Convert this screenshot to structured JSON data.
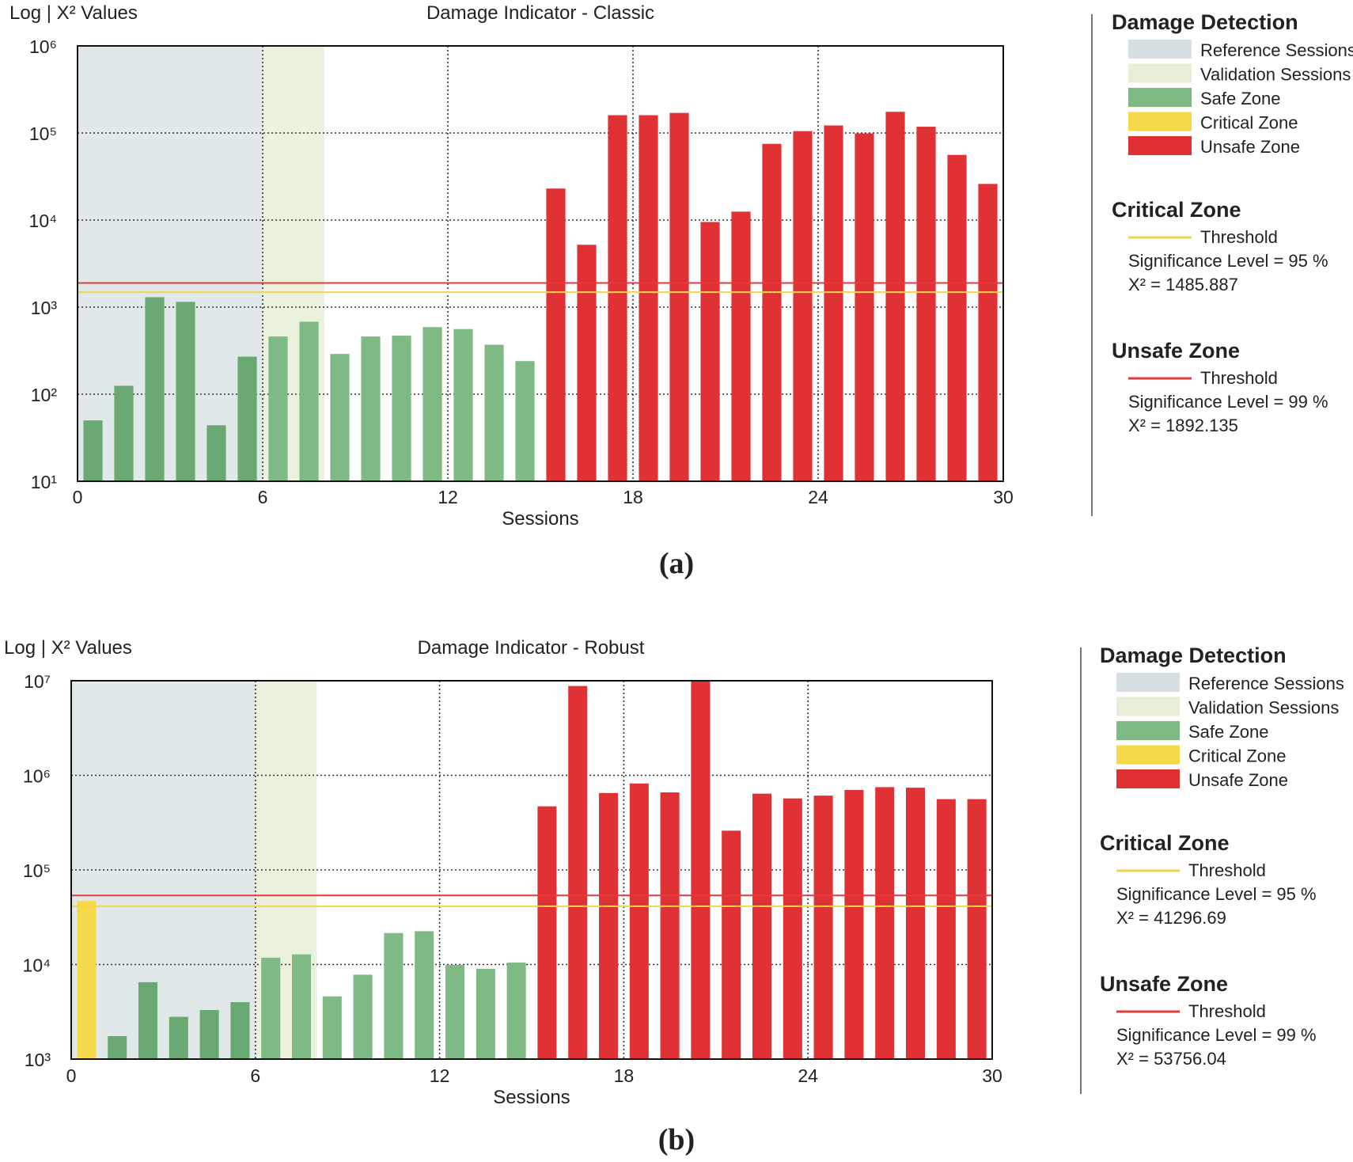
{
  "colors": {
    "reference": "#d6e0e2",
    "validation": "#e6efd6",
    "safe": "#7fba84",
    "safe_ref": "#6aaa72",
    "critical": "#f5d94a",
    "unsafe": "#e03234",
    "critical_line": "#f2d64a",
    "unsafe_line": "#e53a3c"
  },
  "chart_data": [
    {
      "id": "a",
      "type": "bar",
      "scale": "log",
      "title": "Damage Indicator - Classic",
      "ylabel": "Log | X² Values",
      "xlabel": "Sessions",
      "caption": "(a)",
      "xlim": [
        0,
        30
      ],
      "xticks": [
        0,
        6,
        12,
        18,
        24,
        30
      ],
      "ylim_exp": [
        1,
        6
      ],
      "reference_sessions": [
        0,
        6
      ],
      "validation_sessions": [
        6,
        8
      ],
      "bars": [
        {
          "x": 0.5,
          "value": 50,
          "zone": "safe"
        },
        {
          "x": 1.5,
          "value": 125,
          "zone": "safe"
        },
        {
          "x": 2.5,
          "value": 1300,
          "zone": "safe"
        },
        {
          "x": 3.5,
          "value": 1150,
          "zone": "safe"
        },
        {
          "x": 4.5,
          "value": 44,
          "zone": "safe"
        },
        {
          "x": 5.5,
          "value": 270,
          "zone": "safe"
        },
        {
          "x": 6.5,
          "value": 460,
          "zone": "safe"
        },
        {
          "x": 7.5,
          "value": 680,
          "zone": "safe"
        },
        {
          "x": 8.5,
          "value": 290,
          "zone": "safe"
        },
        {
          "x": 9.5,
          "value": 460,
          "zone": "safe"
        },
        {
          "x": 10.5,
          "value": 470,
          "zone": "safe"
        },
        {
          "x": 11.5,
          "value": 590,
          "zone": "safe"
        },
        {
          "x": 12.5,
          "value": 560,
          "zone": "safe"
        },
        {
          "x": 13.5,
          "value": 370,
          "zone": "safe"
        },
        {
          "x": 14.5,
          "value": 240,
          "zone": "safe"
        },
        {
          "x": 15.5,
          "value": 23000,
          "zone": "unsafe"
        },
        {
          "x": 16.5,
          "value": 5200,
          "zone": "unsafe"
        },
        {
          "x": 17.5,
          "value": 160000,
          "zone": "unsafe"
        },
        {
          "x": 18.5,
          "value": 160000,
          "zone": "unsafe"
        },
        {
          "x": 19.5,
          "value": 170000,
          "zone": "unsafe"
        },
        {
          "x": 20.5,
          "value": 9500,
          "zone": "unsafe"
        },
        {
          "x": 21.5,
          "value": 12500,
          "zone": "unsafe"
        },
        {
          "x": 22.5,
          "value": 75000,
          "zone": "unsafe"
        },
        {
          "x": 23.5,
          "value": 105000,
          "zone": "unsafe"
        },
        {
          "x": 24.5,
          "value": 122000,
          "zone": "unsafe"
        },
        {
          "x": 25.5,
          "value": 99000,
          "zone": "unsafe"
        },
        {
          "x": 26.5,
          "value": 175000,
          "zone": "unsafe"
        },
        {
          "x": 27.5,
          "value": 118000,
          "zone": "unsafe"
        },
        {
          "x": 28.5,
          "value": 56000,
          "zone": "unsafe"
        },
        {
          "x": 29.5,
          "value": 26000,
          "zone": "unsafe"
        }
      ],
      "critical_threshold": 1485.887,
      "unsafe_threshold": 1892.135,
      "legend": {
        "title": "Damage Detection",
        "items": [
          {
            "label": "Reference Sessions",
            "color_key": "reference"
          },
          {
            "label": "Validation Sessions",
            "color_key": "validation"
          },
          {
            "label": "Safe Zone",
            "color_key": "safe"
          },
          {
            "label": "Critical Zone",
            "color_key": "critical"
          },
          {
            "label": "Unsafe Zone",
            "color_key": "unsafe"
          }
        ],
        "critical": {
          "title": "Critical Zone",
          "line_label": "Threshold",
          "significance": "Significance Level = 95 %",
          "chi": "X² = 1485.887"
        },
        "unsafe": {
          "title": "Unsafe Zone",
          "line_label": "Threshold",
          "significance": "Significance Level = 99 %",
          "chi": "X² = 1892.135"
        }
      }
    },
    {
      "id": "b",
      "type": "bar",
      "scale": "log",
      "title": "Damage Indicator - Robust",
      "ylabel": "Log | X² Values",
      "xlabel": "Sessions",
      "caption": "(b)",
      "xlim": [
        0,
        30
      ],
      "xticks": [
        0,
        6,
        12,
        18,
        24,
        30
      ],
      "ylim_exp": [
        3,
        7
      ],
      "reference_sessions": [
        0,
        6
      ],
      "validation_sessions": [
        6,
        8
      ],
      "bars": [
        {
          "x": 0.5,
          "value": 47000,
          "zone": "critical"
        },
        {
          "x": 1.5,
          "value": 1750,
          "zone": "safe"
        },
        {
          "x": 2.5,
          "value": 6500,
          "zone": "safe"
        },
        {
          "x": 3.5,
          "value": 2800,
          "zone": "safe"
        },
        {
          "x": 4.5,
          "value": 3300,
          "zone": "safe"
        },
        {
          "x": 5.5,
          "value": 4000,
          "zone": "safe"
        },
        {
          "x": 6.5,
          "value": 11800,
          "zone": "safe"
        },
        {
          "x": 7.5,
          "value": 12800,
          "zone": "safe"
        },
        {
          "x": 8.5,
          "value": 4600,
          "zone": "safe"
        },
        {
          "x": 9.5,
          "value": 7800,
          "zone": "safe"
        },
        {
          "x": 10.5,
          "value": 21500,
          "zone": "safe"
        },
        {
          "x": 11.5,
          "value": 22500,
          "zone": "safe"
        },
        {
          "x": 12.5,
          "value": 9900,
          "zone": "safe"
        },
        {
          "x": 13.5,
          "value": 9000,
          "zone": "safe"
        },
        {
          "x": 14.5,
          "value": 10500,
          "zone": "safe"
        },
        {
          "x": 15.5,
          "value": 470000,
          "zone": "unsafe"
        },
        {
          "x": 16.5,
          "value": 8800000,
          "zone": "unsafe"
        },
        {
          "x": 17.5,
          "value": 650000,
          "zone": "unsafe"
        },
        {
          "x": 18.5,
          "value": 820000,
          "zone": "unsafe"
        },
        {
          "x": 19.5,
          "value": 660000,
          "zone": "unsafe"
        },
        {
          "x": 20.5,
          "value": 10000000,
          "zone": "unsafe"
        },
        {
          "x": 21.5,
          "value": 260000,
          "zone": "unsafe"
        },
        {
          "x": 22.5,
          "value": 640000,
          "zone": "unsafe"
        },
        {
          "x": 23.5,
          "value": 570000,
          "zone": "unsafe"
        },
        {
          "x": 24.5,
          "value": 610000,
          "zone": "unsafe"
        },
        {
          "x": 25.5,
          "value": 700000,
          "zone": "unsafe"
        },
        {
          "x": 26.5,
          "value": 750000,
          "zone": "unsafe"
        },
        {
          "x": 27.5,
          "value": 740000,
          "zone": "unsafe"
        },
        {
          "x": 28.5,
          "value": 560000,
          "zone": "unsafe"
        },
        {
          "x": 29.5,
          "value": 560000,
          "zone": "unsafe"
        }
      ],
      "critical_threshold": 41296.69,
      "unsafe_threshold": 53756.04,
      "legend": {
        "title": "Damage Detection",
        "items": [
          {
            "label": "Reference Sessions",
            "color_key": "reference"
          },
          {
            "label": "Validation Sessions",
            "color_key": "validation"
          },
          {
            "label": "Safe Zone",
            "color_key": "safe"
          },
          {
            "label": "Critical Zone",
            "color_key": "critical"
          },
          {
            "label": "Unsafe Zone",
            "color_key": "unsafe"
          }
        ],
        "critical": {
          "title": "Critical Zone",
          "line_label": "Threshold",
          "significance": "Significance Level = 95 %",
          "chi": "X² = 41296.69"
        },
        "unsafe": {
          "title": "Unsafe Zone",
          "line_label": "Threshold",
          "significance": "Significance Level = 99 %",
          "chi": "X² = 53756.04"
        }
      }
    }
  ]
}
